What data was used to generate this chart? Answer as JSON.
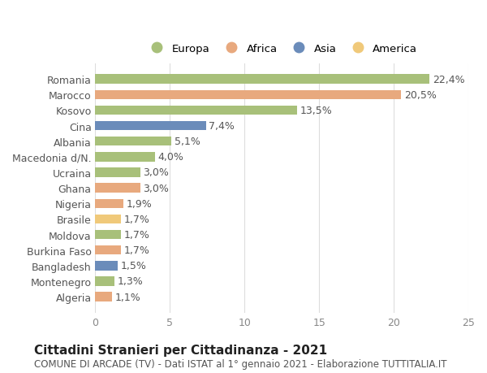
{
  "categories": [
    "Romania",
    "Marocco",
    "Kosovo",
    "Cina",
    "Albania",
    "Macedonia d/N.",
    "Ucraina",
    "Ghana",
    "Nigeria",
    "Brasile",
    "Moldova",
    "Burkina Faso",
    "Bangladesh",
    "Montenegro",
    "Algeria"
  ],
  "values": [
    22.4,
    20.5,
    13.5,
    7.4,
    5.1,
    4.0,
    3.0,
    3.0,
    1.9,
    1.7,
    1.7,
    1.7,
    1.5,
    1.3,
    1.1
  ],
  "labels": [
    "22,4%",
    "20,5%",
    "13,5%",
    "7,4%",
    "5,1%",
    "4,0%",
    "3,0%",
    "3,0%",
    "1,9%",
    "1,7%",
    "1,7%",
    "1,7%",
    "1,5%",
    "1,3%",
    "1,1%"
  ],
  "continents": [
    "Europa",
    "Africa",
    "Europa",
    "Asia",
    "Europa",
    "Europa",
    "Europa",
    "Africa",
    "Africa",
    "America",
    "Europa",
    "Africa",
    "Asia",
    "Europa",
    "Africa"
  ],
  "continent_colors": {
    "Europa": "#a8c07a",
    "Africa": "#e8a97e",
    "Asia": "#6b8cba",
    "America": "#f0c97a"
  },
  "legend_order": [
    "Europa",
    "Africa",
    "Asia",
    "America"
  ],
  "xlim": [
    0,
    25
  ],
  "xticks": [
    0,
    5,
    10,
    15,
    20,
    25
  ],
  "title": "Cittadini Stranieri per Cittadinanza - 2021",
  "subtitle": "COMUNE DI ARCADE (TV) - Dati ISTAT al 1° gennaio 2021 - Elaborazione TUTTITALIA.IT",
  "background_color": "#ffffff",
  "grid_color": "#dddddd",
  "bar_height": 0.6,
  "label_fontsize": 9,
  "title_fontsize": 11,
  "subtitle_fontsize": 8.5,
  "ytick_fontsize": 9,
  "xtick_fontsize": 9
}
